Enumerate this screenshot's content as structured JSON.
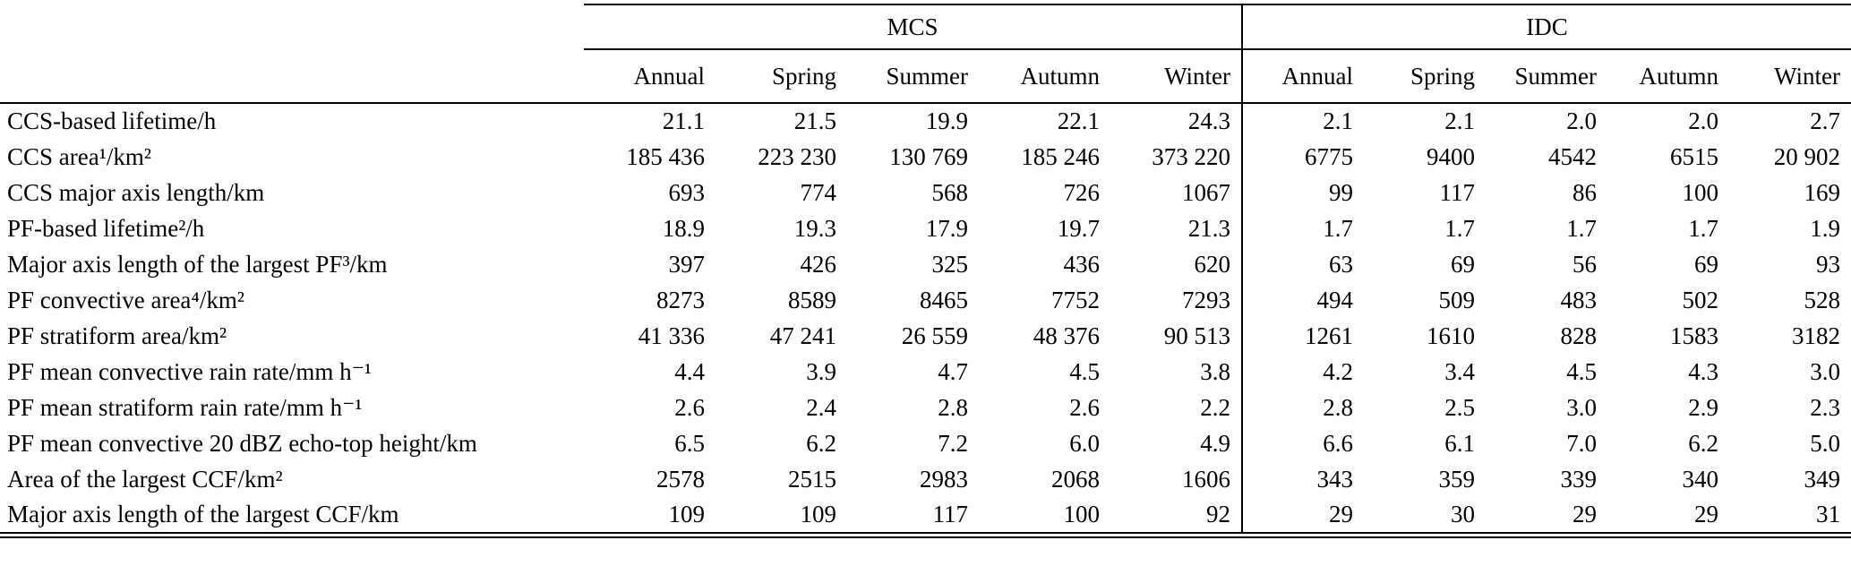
{
  "table": {
    "groups": [
      {
        "label": "MCS",
        "columns": [
          "Annual",
          "Spring",
          "Summer",
          "Autumn",
          "Winter"
        ]
      },
      {
        "label": "IDC",
        "columns": [
          "Annual",
          "Spring",
          "Summer",
          "Autumn",
          "Winter"
        ]
      }
    ],
    "rows": [
      {
        "label": "CCS-based lifetime/h",
        "mcs": [
          "21.1",
          "21.5",
          "19.9",
          "22.1",
          "24.3"
        ],
        "idc": [
          "2.1",
          "2.1",
          "2.0",
          "2.0",
          "2.7"
        ]
      },
      {
        "label": "CCS area¹/km²",
        "mcs": [
          "185 436",
          "223 230",
          "130 769",
          "185 246",
          "373 220"
        ],
        "idc": [
          "6775",
          "9400",
          "4542",
          "6515",
          "20 902"
        ]
      },
      {
        "label": "CCS major axis length/km",
        "mcs": [
          "693",
          "774",
          "568",
          "726",
          "1067"
        ],
        "idc": [
          "99",
          "117",
          "86",
          "100",
          "169"
        ]
      },
      {
        "label": "PF-based lifetime²/h",
        "mcs": [
          "18.9",
          "19.3",
          "17.9",
          "19.7",
          "21.3"
        ],
        "idc": [
          "1.7",
          "1.7",
          "1.7",
          "1.7",
          "1.9"
        ]
      },
      {
        "label": "Major axis length of the largest PF³/km",
        "mcs": [
          "397",
          "426",
          "325",
          "436",
          "620"
        ],
        "idc": [
          "63",
          "69",
          "56",
          "69",
          "93"
        ]
      },
      {
        "label": "PF convective area⁴/km²",
        "mcs": [
          "8273",
          "8589",
          "8465",
          "7752",
          "7293"
        ],
        "idc": [
          "494",
          "509",
          "483",
          "502",
          "528"
        ]
      },
      {
        "label": "PF stratiform area/km²",
        "mcs": [
          "41 336",
          "47 241",
          "26 559",
          "48 376",
          "90 513"
        ],
        "idc": [
          "1261",
          "1610",
          "828",
          "1583",
          "3182"
        ]
      },
      {
        "label": "PF mean convective rain rate/mm h⁻¹",
        "mcs": [
          "4.4",
          "3.9",
          "4.7",
          "4.5",
          "3.8"
        ],
        "idc": [
          "4.2",
          "3.4",
          "4.5",
          "4.3",
          "3.0"
        ]
      },
      {
        "label": "PF mean stratiform rain rate/mm h⁻¹",
        "mcs": [
          "2.6",
          "2.4",
          "2.8",
          "2.6",
          "2.2"
        ],
        "idc": [
          "2.8",
          "2.5",
          "3.0",
          "2.9",
          "2.3"
        ]
      },
      {
        "label": "PF mean convective 20 dBZ echo-top height/km",
        "mcs": [
          "6.5",
          "6.2",
          "7.2",
          "6.0",
          "4.9"
        ],
        "idc": [
          "6.6",
          "6.1",
          "7.0",
          "6.2",
          "5.0"
        ]
      },
      {
        "label": "Area of the largest CCF/km²",
        "mcs": [
          "2578",
          "2515",
          "2983",
          "2068",
          "1606"
        ],
        "idc": [
          "343",
          "359",
          "339",
          "340",
          "349"
        ]
      },
      {
        "label": "Major axis length of the largest CCF/km",
        "mcs": [
          "109",
          "109",
          "117",
          "100",
          "92"
        ],
        "idc": [
          "29",
          "30",
          "29",
          "29",
          "31"
        ]
      }
    ]
  }
}
